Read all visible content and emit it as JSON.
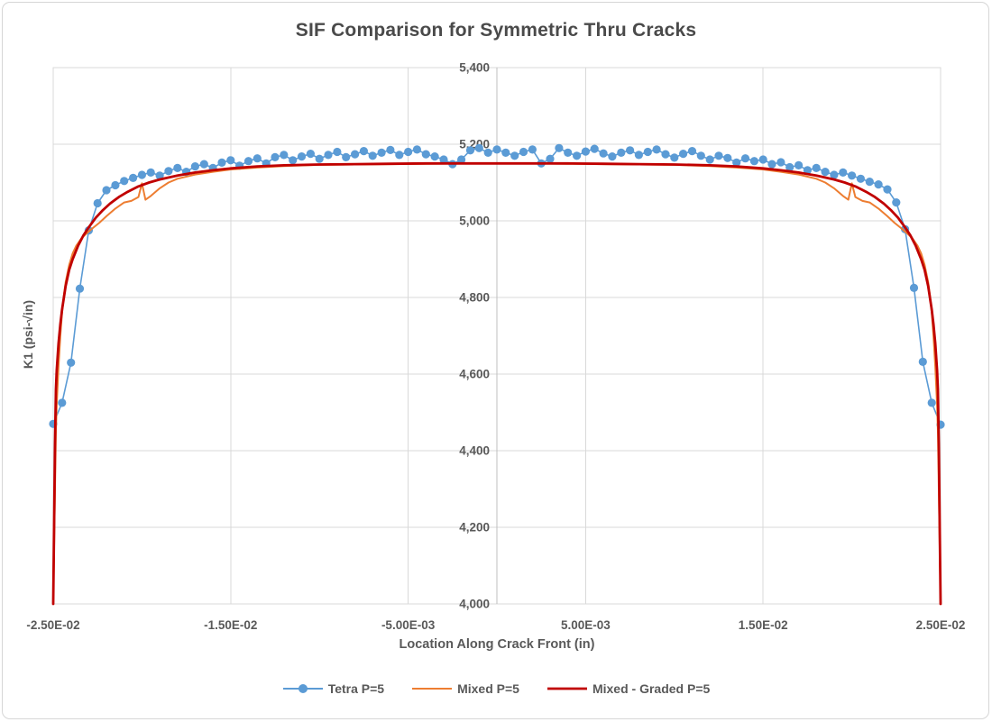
{
  "chart_data": {
    "type": "line",
    "title": "SIF Comparison for Symmetric Thru Cracks",
    "xlabel": "Location Along Crack Front (in)",
    "ylabel": "K1 (psi-√in)",
    "xlim": [
      -0.025,
      0.025
    ],
    "ylim": [
      4000,
      5400
    ],
    "grid": true,
    "legend_position": "bottom",
    "axis_colors": {
      "gridline": "#d9d9d9",
      "axis_line": "#bfbfbf",
      "tick_label": "#595959",
      "plot_border": "#d9d9d9"
    },
    "y_ticks": [
      4000,
      4200,
      4400,
      4600,
      4800,
      5000,
      5200,
      5400
    ],
    "y_tick_labels": [
      "4,000",
      "4,200",
      "4,400",
      "4,600",
      "4,800",
      "5,000",
      "5,200",
      "5,400"
    ],
    "x_tick_values": [
      -0.025,
      -0.015,
      -0.005,
      0.005,
      0.015,
      0.025
    ],
    "x_tick_labels": [
      "-2.50E-02",
      "-1.50E-02",
      "-5.00E-03",
      "5.00E-03",
      "1.50E-02",
      "2.50E-02"
    ],
    "x_gridline_values": [
      -0.015,
      -0.005,
      0.005,
      0.015
    ],
    "vertical_axis_at_x": 0,
    "series": [
      {
        "name": "Tetra P=5",
        "color": "#5b9bd5",
        "marker": "circle",
        "marker_size": 4.6,
        "line_width": 1.6,
        "x_start": -0.025,
        "x_step": 0.0005,
        "values": [
          4470,
          4525,
          4630,
          4823,
          4975,
          5046,
          5080,
          5093,
          5104,
          5112,
          5120,
          5126,
          5118,
          5130,
          5138,
          5128,
          5142,
          5148,
          5138,
          5152,
          5158,
          5144,
          5156,
          5163,
          5150,
          5166,
          5172,
          5158,
          5168,
          5175,
          5162,
          5172,
          5180,
          5166,
          5174,
          5182,
          5170,
          5178,
          5185,
          5172,
          5180,
          5186,
          5174,
          5168,
          5160,
          5148,
          5160,
          5184,
          5190,
          5178,
          5186,
          5178,
          5170,
          5180,
          5186,
          5150,
          5162,
          5190,
          5178,
          5170,
          5181,
          5188,
          5176,
          5168,
          5178,
          5184,
          5172,
          5180,
          5186,
          5174,
          5165,
          5175,
          5182,
          5170,
          5160,
          5170,
          5164,
          5152,
          5163,
          5156,
          5160,
          5148,
          5153,
          5140,
          5145,
          5132,
          5138,
          5128,
          5120,
          5126,
          5118,
          5110,
          5102,
          5095,
          5082,
          5048,
          4978,
          4825,
          4632,
          4525,
          4468
        ]
      },
      {
        "name": "Mixed P=5",
        "color": "#ed7d31",
        "marker": "none",
        "line_width": 2,
        "points": [
          [
            -0.025,
            4000
          ],
          [
            -0.0249,
            4300
          ],
          [
            -0.02485,
            4450
          ],
          [
            -0.0248,
            4520
          ],
          [
            -0.0247,
            4620
          ],
          [
            -0.0246,
            4700
          ],
          [
            -0.0245,
            4760
          ],
          [
            -0.0244,
            4805
          ],
          [
            -0.0243,
            4840
          ],
          [
            -0.0241,
            4885
          ],
          [
            -0.0239,
            4915
          ],
          [
            -0.0237,
            4935
          ],
          [
            -0.0234,
            4955
          ],
          [
            -0.0231,
            4968
          ],
          [
            -0.0228,
            4980
          ],
          [
            -0.0224,
            4995
          ],
          [
            -0.022,
            5012
          ],
          [
            -0.0215,
            5032
          ],
          [
            -0.021,
            5048
          ],
          [
            -0.0206,
            5052
          ],
          [
            -0.0202,
            5062
          ],
          [
            -0.02,
            5098
          ],
          [
            -0.0198,
            5055
          ],
          [
            -0.0195,
            5065
          ],
          [
            -0.019,
            5085
          ],
          [
            -0.0185,
            5100
          ],
          [
            -0.018,
            5110
          ],
          [
            -0.017,
            5121
          ],
          [
            -0.016,
            5128
          ],
          [
            -0.015,
            5134
          ],
          [
            -0.0135,
            5139
          ],
          [
            -0.012,
            5143
          ],
          [
            -0.01,
            5146
          ],
          [
            -0.008,
            5147
          ],
          [
            -0.006,
            5148
          ],
          [
            -0.004,
            5149
          ],
          [
            -0.002,
            5150
          ],
          [
            0,
            5150
          ],
          [
            0.002,
            5150
          ],
          [
            0.004,
            5149
          ],
          [
            0.006,
            5148
          ],
          [
            0.008,
            5147
          ],
          [
            0.01,
            5146
          ],
          [
            0.012,
            5143
          ],
          [
            0.0135,
            5139
          ],
          [
            0.015,
            5134
          ],
          [
            0.016,
            5128
          ],
          [
            0.017,
            5121
          ],
          [
            0.018,
            5110
          ],
          [
            0.0185,
            5100
          ],
          [
            0.019,
            5085
          ],
          [
            0.0195,
            5065
          ],
          [
            0.0198,
            5055
          ],
          [
            0.02,
            5098
          ],
          [
            0.0202,
            5062
          ],
          [
            0.0206,
            5052
          ],
          [
            0.021,
            5048
          ],
          [
            0.0215,
            5032
          ],
          [
            0.022,
            5012
          ],
          [
            0.0224,
            4995
          ],
          [
            0.0228,
            4980
          ],
          [
            0.0231,
            4968
          ],
          [
            0.0234,
            4955
          ],
          [
            0.0237,
            4935
          ],
          [
            0.0239,
            4915
          ],
          [
            0.0241,
            4885
          ],
          [
            0.0243,
            4840
          ],
          [
            0.0244,
            4805
          ],
          [
            0.0245,
            4760
          ],
          [
            0.0246,
            4700
          ],
          [
            0.0247,
            4620
          ],
          [
            0.0248,
            4520
          ],
          [
            0.02485,
            4450
          ],
          [
            0.0249,
            4300
          ],
          [
            0.025,
            4000
          ]
        ]
      },
      {
        "name": "Mixed - Graded P=5",
        "color": "#c00000",
        "marker": "none",
        "line_width": 2.8,
        "points": [
          [
            -0.025,
            4000
          ],
          [
            -0.0249,
            4420
          ],
          [
            -0.02485,
            4560
          ],
          [
            -0.0248,
            4610
          ],
          [
            -0.0247,
            4680
          ],
          [
            -0.0246,
            4730
          ],
          [
            -0.0245,
            4768
          ],
          [
            -0.0243,
            4830
          ],
          [
            -0.0241,
            4872
          ],
          [
            -0.0239,
            4900
          ],
          [
            -0.0236,
            4935
          ],
          [
            -0.0233,
            4962
          ],
          [
            -0.023,
            4983
          ],
          [
            -0.0226,
            5008
          ],
          [
            -0.0222,
            5028
          ],
          [
            -0.0218,
            5045
          ],
          [
            -0.0213,
            5062
          ],
          [
            -0.0208,
            5076
          ],
          [
            -0.0202,
            5090
          ],
          [
            -0.0196,
            5100
          ],
          [
            -0.019,
            5108
          ],
          [
            -0.018,
            5118
          ],
          [
            -0.017,
            5126
          ],
          [
            -0.016,
            5132
          ],
          [
            -0.015,
            5137
          ],
          [
            -0.0135,
            5142
          ],
          [
            -0.012,
            5145
          ],
          [
            -0.01,
            5147
          ],
          [
            -0.008,
            5148
          ],
          [
            -0.006,
            5149
          ],
          [
            -0.004,
            5150
          ],
          [
            -0.002,
            5150
          ],
          [
            0,
            5150
          ],
          [
            0.002,
            5150
          ],
          [
            0.004,
            5150
          ],
          [
            0.006,
            5149
          ],
          [
            0.008,
            5148
          ],
          [
            0.01,
            5147
          ],
          [
            0.012,
            5145
          ],
          [
            0.0135,
            5142
          ],
          [
            0.015,
            5137
          ],
          [
            0.016,
            5132
          ],
          [
            0.017,
            5126
          ],
          [
            0.018,
            5118
          ],
          [
            0.019,
            5108
          ],
          [
            0.0196,
            5100
          ],
          [
            0.0202,
            5090
          ],
          [
            0.0208,
            5076
          ],
          [
            0.0213,
            5062
          ],
          [
            0.0218,
            5045
          ],
          [
            0.0222,
            5028
          ],
          [
            0.0226,
            5008
          ],
          [
            0.023,
            4983
          ],
          [
            0.0233,
            4962
          ],
          [
            0.0236,
            4935
          ],
          [
            0.0239,
            4900
          ],
          [
            0.0241,
            4872
          ],
          [
            0.0243,
            4830
          ],
          [
            0.0245,
            4768
          ],
          [
            0.0246,
            4730
          ],
          [
            0.0247,
            4680
          ],
          [
            0.0248,
            4610
          ],
          [
            0.02485,
            4560
          ],
          [
            0.0249,
            4420
          ],
          [
            0.025,
            4000
          ]
        ]
      }
    ]
  },
  "frame": {
    "background": "#ffffff",
    "border_color": "#d6d6d6"
  }
}
